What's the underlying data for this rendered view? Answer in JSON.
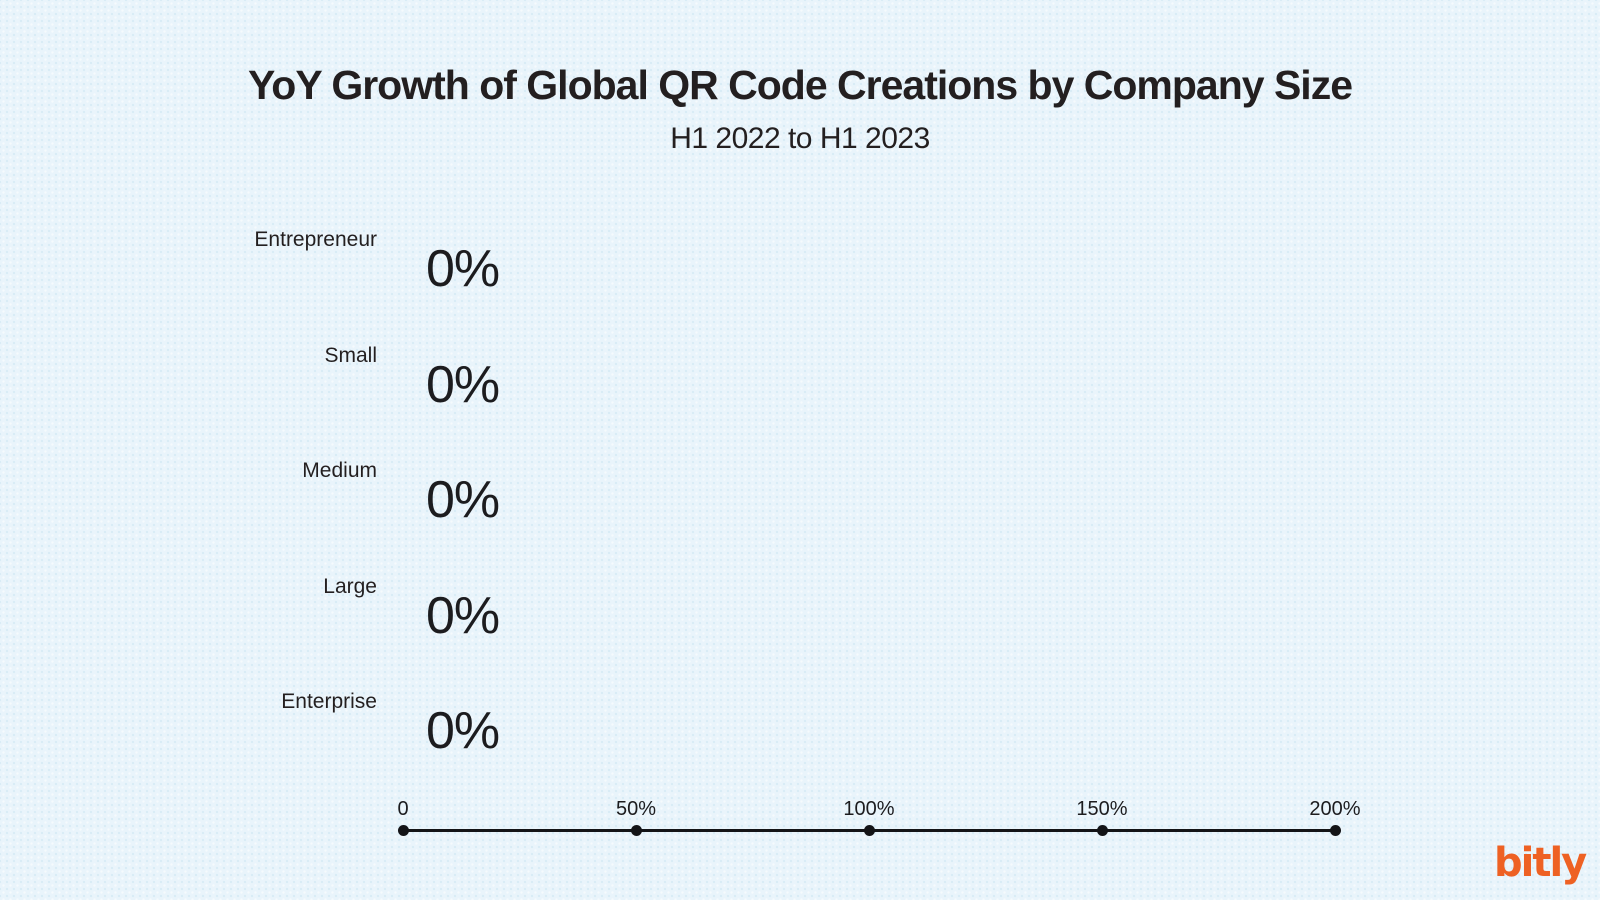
{
  "meta": {
    "background_color": "#e9f4fb",
    "text_color": "#231f20",
    "accent_orange": "#ee6123"
  },
  "header": {
    "title": "YoY Growth of Global QR Code Creations by Company Size",
    "subtitle": "H1 2022 to H1 2023"
  },
  "chart_data": {
    "type": "bar",
    "orientation": "horizontal",
    "title": "YoY Growth of Global QR Code Creations by Company Size",
    "subtitle": "H1 2022 to H1 2023",
    "categories": [
      "Entrepreneur",
      "Small",
      "Medium",
      "Large",
      "Enterprise"
    ],
    "values": [
      0,
      0,
      0,
      0,
      0
    ],
    "value_labels": [
      "0%",
      "0%",
      "0%",
      "0%",
      "0%"
    ],
    "xlabel": "",
    "ylabel": "",
    "xlim": [
      0,
      200
    ],
    "x_ticks": [
      {
        "value": 0,
        "label": "0"
      },
      {
        "value": 50,
        "label": "50%"
      },
      {
        "value": 100,
        "label": "100%"
      },
      {
        "value": 150,
        "label": "150%"
      },
      {
        "value": 200,
        "label": "200%"
      }
    ],
    "grid": false,
    "legend": false,
    "axis_style": "line-with-dot-markers"
  },
  "branding": {
    "logo_text": "bitly",
    "logo_color": "#ee6123"
  }
}
